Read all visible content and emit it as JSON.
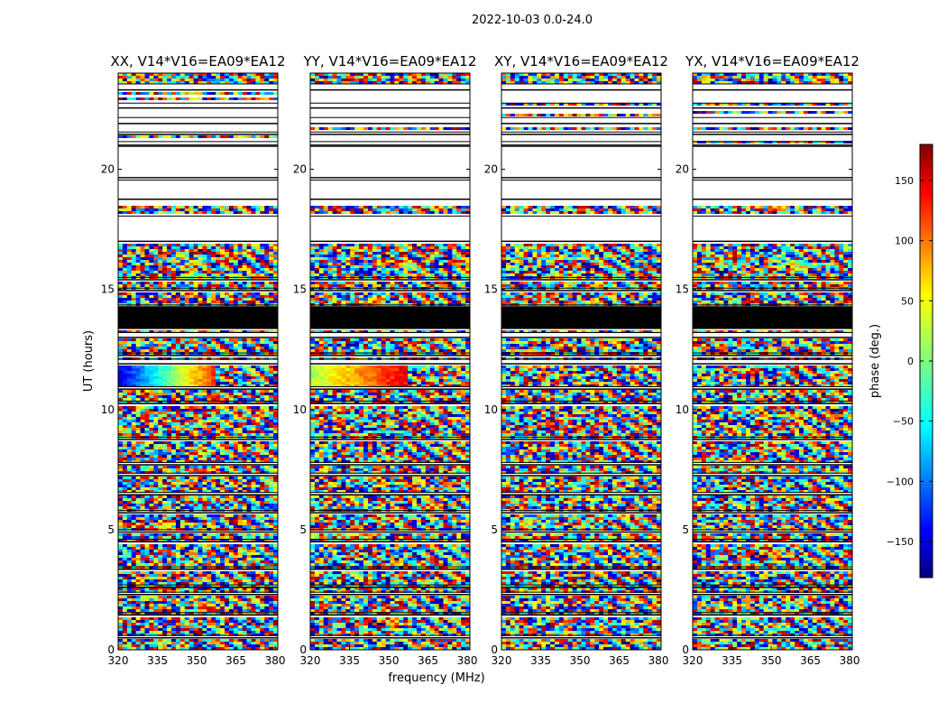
{
  "figure": {
    "suptitle": "2022-10-03 0.0-24.0",
    "xlabel": "frequency (MHz)",
    "ylabel": "UT (hours)",
    "colorbar_label": "phase (deg.)"
  },
  "chart_data": {
    "type": "heatmap",
    "suptitle": "2022-10-03 0.0-24.0",
    "xlabel": "frequency (MHz)",
    "ylabel": "UT (hours)",
    "xlim": [
      320,
      381
    ],
    "ylim": [
      0,
      24
    ],
    "xticks": [
      "320",
      "335",
      "350",
      "365",
      "380"
    ],
    "yticks": [
      "0",
      "5",
      "10",
      "15",
      "20"
    ],
    "panels": [
      {
        "title": "XX, V14*V16=EA09*EA12"
      },
      {
        "title": "YY, V14*V16=EA09*EA12"
      },
      {
        "title": "XY, V14*V16=EA09*EA12"
      },
      {
        "title": "YX, V14*V16=EA09*EA12"
      }
    ],
    "colorbar": {
      "label": "phase (deg.)",
      "range": [
        -180,
        180
      ],
      "ticks": [
        "150",
        "100",
        "50",
        "0",
        "−50",
        "−100",
        "−150"
      ],
      "colormap": "jet"
    },
    "flagged_ut_bands": [
      [
        23.3,
        23.55
      ],
      [
        22.55,
        22.75
      ],
      [
        21.9,
        22.15
      ],
      [
        21.45,
        21.55
      ],
      [
        21.0,
        21.15
      ],
      [
        19.65,
        20.95
      ],
      [
        18.75,
        19.55
      ],
      [
        17.0,
        18.05
      ],
      [
        15.4,
        15.5
      ],
      [
        14.95,
        15.05
      ],
      [
        14.25,
        14.35
      ],
      [
        13.0,
        13.2
      ],
      [
        12.25,
        12.35
      ],
      [
        11.9,
        12.1
      ],
      [
        10.85,
        10.95
      ],
      [
        10.25,
        10.35
      ],
      [
        8.75,
        8.85
      ],
      [
        7.7,
        7.8
      ],
      [
        7.25,
        7.35
      ],
      [
        6.45,
        6.55
      ],
      [
        5.7,
        5.8
      ],
      [
        4.9,
        5.0
      ],
      [
        4.5,
        4.6
      ],
      [
        3.35,
        3.45
      ],
      [
        2.6,
        2.7
      ],
      [
        2.3,
        2.4
      ],
      [
        1.45,
        1.55
      ],
      [
        0.5,
        0.6
      ]
    ],
    "solid_black_ut_band": [
      13.35,
      14.3
    ],
    "strong_fringe_ut_band": [
      10.95,
      11.85
    ]
  }
}
